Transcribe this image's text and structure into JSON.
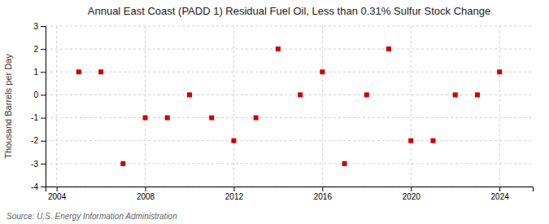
{
  "chart_data": {
    "type": "scatter",
    "title": "Annual East Coast (PADD 1) Residual Fuel Oil, Less than 0.31% Sulfur Stock Change",
    "ylabel": "Thousand Barrels per Day",
    "annotations": [
      "Source: U.S. Energy Information Administration"
    ],
    "x": [
      2005,
      2006,
      2007,
      2008,
      2009,
      2010,
      2011,
      2012,
      2013,
      2014,
      2015,
      2016,
      2017,
      2018,
      2019,
      2020,
      2021,
      2022,
      2023,
      2024
    ],
    "values": [
      1,
      1,
      -3,
      -1,
      -1,
      0,
      -1,
      -2,
      -1,
      2,
      0,
      1,
      -3,
      0,
      2,
      -2,
      -2,
      0,
      0,
      1
    ],
    "color": "#cc0000",
    "marker": "square",
    "xlim": [
      2003.5,
      2025.5
    ],
    "ylim": [
      -4,
      3
    ],
    "xticks": [
      2004,
      2008,
      2012,
      2016,
      2020,
      2024
    ],
    "yticks": [
      -4,
      -3,
      -2,
      -1,
      0,
      1,
      2,
      3
    ],
    "grid": true
  }
}
